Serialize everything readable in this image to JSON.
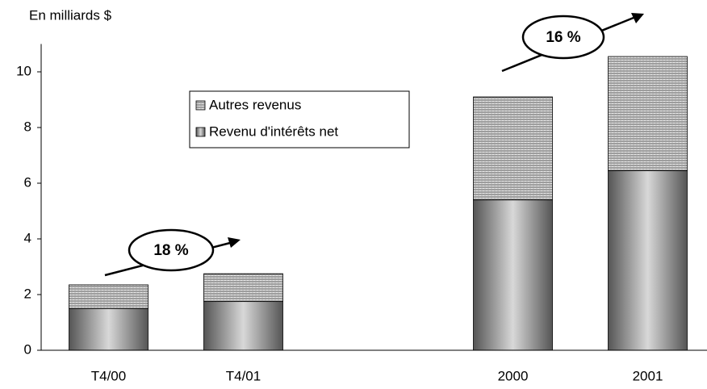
{
  "chart_data": {
    "type": "bar",
    "stacked": true,
    "y_axis_label": "En milliards $",
    "categories": [
      "T4/00",
      "T4/01",
      null,
      "2000",
      "2001"
    ],
    "series": [
      {
        "name": "Revenu d'intérêts net",
        "color": "#8a8a8a",
        "values": [
          1.5,
          1.75,
          null,
          5.4,
          6.45
        ]
      },
      {
        "name": "Autres revenus",
        "color": "#9a9a9a",
        "values": [
          0.85,
          1.0,
          null,
          3.7,
          4.1
        ]
      }
    ],
    "ylim": [
      0,
      11
    ],
    "yticks": [
      0,
      2,
      4,
      6,
      8,
      10
    ],
    "annotations": [
      "18 %",
      "16 %"
    ]
  }
}
